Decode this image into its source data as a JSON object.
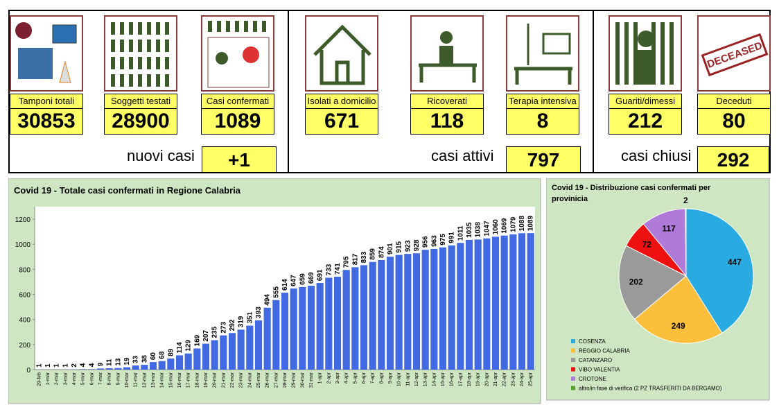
{
  "panels": [
    {
      "label": "Tamponi totali",
      "value": 30853
    },
    {
      "label": "Soggetti testati",
      "value": 28900
    },
    {
      "label": "Casi confermati",
      "value": 1089
    },
    {
      "label": "Isolati a domicilio",
      "value": 671
    },
    {
      "label": "Ricoverati",
      "value": 118
    },
    {
      "label": "Terapia intensiva",
      "value": 8
    },
    {
      "label": "Guariti/dimessi",
      "value": 212
    },
    {
      "label": "Deceduti",
      "value": 80
    }
  ],
  "icon_text": "DECEASED",
  "summaries": [
    {
      "label": "nuovi casi",
      "value": "+1"
    },
    {
      "label": "casi attivi",
      "value": 797
    },
    {
      "label": "casi chiusi",
      "value": 292
    }
  ],
  "chart_data": [
    {
      "type": "bar",
      "title": "Covid 19 - Totale casi confermati in Regione Calabria",
      "color": "#4169e1",
      "categories": [
        "29-feb",
        "1-mar",
        "2-mar",
        "3-mar",
        "4-mar",
        "5-mar",
        "6-mar",
        "7-mar",
        "8-mar",
        "9-mar",
        "10-mar",
        "11-mar",
        "12-mar",
        "13-mar",
        "14-mar",
        "15-mar",
        "16-mar",
        "17-mar",
        "18-mar",
        "19-mar",
        "20-mar",
        "21-mar",
        "22-mar",
        "23-mar",
        "24-mar",
        "25-mar",
        "26-mar",
        "27-mar",
        "28-mar",
        "29-mar",
        "30-mar",
        "31-mar",
        "1-apr",
        "2-apr",
        "3-apr",
        "4-apr",
        "5-apr",
        "6-apr",
        "7-apr",
        "8-apr",
        "9-apr",
        "10-apr",
        "11-apr",
        "12-apr",
        "13-apr",
        "14-apr",
        "15-apr",
        "16-apr",
        "17-apr",
        "18-apr",
        "19-apr",
        "20-apr",
        "21-apr",
        "22-apr",
        "23-apr",
        "24-apr",
        "25-apr"
      ],
      "values": [
        1,
        1,
        1,
        1,
        2,
        4,
        4,
        9,
        11,
        13,
        19,
        33,
        38,
        60,
        68,
        89,
        114,
        129,
        169,
        207,
        235,
        273,
        292,
        319,
        351,
        393,
        494,
        555,
        614,
        647,
        659,
        669,
        691,
        733,
        741,
        795,
        817,
        833,
        859,
        874,
        901,
        915,
        923,
        928,
        956,
        963,
        975,
        991,
        1011,
        1035,
        1038,
        1047,
        1060,
        1069,
        1079,
        1088,
        1089
      ],
      "ylim": [
        0,
        1300
      ],
      "yticks": [
        0,
        200,
        400,
        600,
        800,
        1000,
        1200
      ],
      "grid": false
    },
    {
      "type": "pie",
      "title": "Covid 19 - Distribuzione casi confermati per provinicia",
      "series": [
        {
          "name": "COSENZA",
          "color": "#29abe2",
          "value": 447
        },
        {
          "name": "REGGIO CALABRIA",
          "color": "#fbbf3c",
          "value": 249
        },
        {
          "name": "CATANZARO",
          "color": "#9a9a9a",
          "value": 202
        },
        {
          "name": "VIBO VALENTIA",
          "color": "#ee1111",
          "value": 72
        },
        {
          "name": "CROTONE",
          "color": "#b07bd8",
          "value": 117
        },
        {
          "name": "altro/in fase di verifica (2 PZ TRASFERITI DA BERGAMO)",
          "color": "#5aa02c",
          "value": 2
        }
      ]
    }
  ]
}
